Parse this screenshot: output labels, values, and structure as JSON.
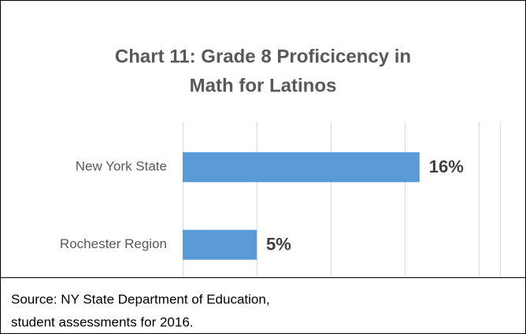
{
  "chart_data": {
    "type": "bar",
    "orientation": "horizontal",
    "title": [
      "Chart 11: Grade 8 Proficicency in",
      "Math for Latinos"
    ],
    "categories": [
      "New York State",
      "Rochester Region"
    ],
    "values": [
      16,
      5
    ],
    "value_labels": [
      "16%",
      "5%"
    ],
    "color": "#5b9bd5",
    "xlim": [
      0,
      20
    ],
    "xticks": [
      0,
      5,
      10,
      15,
      20
    ],
    "grid": true,
    "source": [
      "Source: NY State Department of Education,",
      "student assessments for 2016."
    ]
  }
}
